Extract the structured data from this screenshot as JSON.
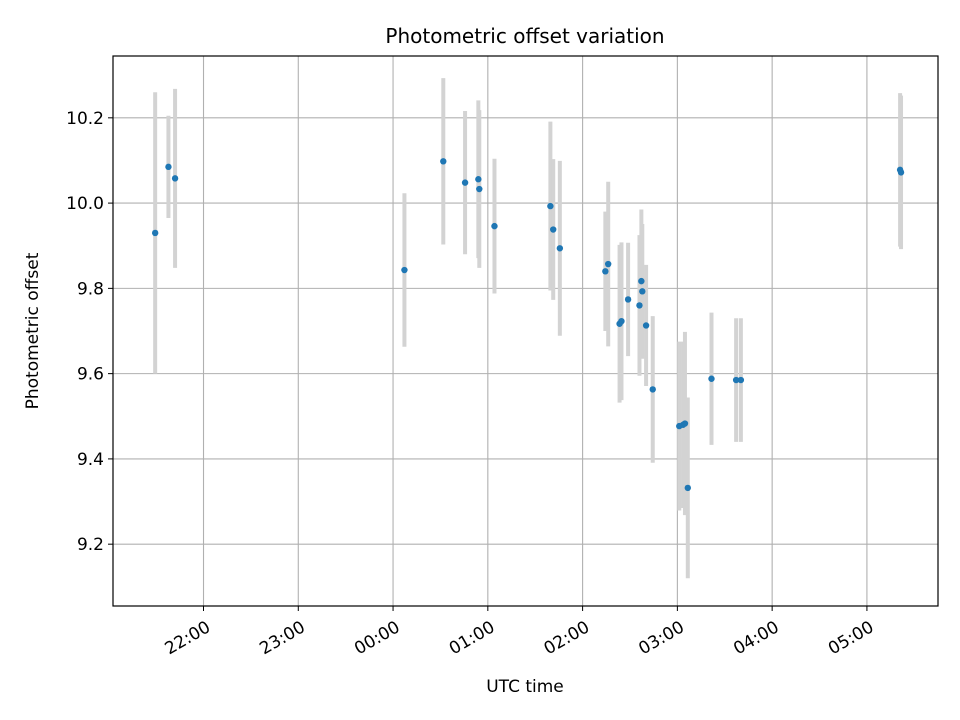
{
  "chart_data": {
    "type": "scatter",
    "title": "Photometric offset variation",
    "xlabel": "UTC time",
    "ylabel": "Photometric offset",
    "x_tick_labels": [
      "22:00",
      "23:00",
      "00:00",
      "01:00",
      "02:00",
      "03:00",
      "04:00",
      "05:00"
    ],
    "x_tick_hours": [
      22,
      23,
      24,
      25,
      26,
      27,
      28,
      29
    ],
    "xlim": [
      21.045,
      29.75
    ],
    "ylim": [
      9.055,
      10.345
    ],
    "y_ticks": [
      9.2,
      9.4,
      9.6,
      9.8,
      10.0,
      10.2
    ],
    "y_tick_labels": [
      "9.2",
      "9.4",
      "9.6",
      "9.8",
      "10.0",
      "10.2"
    ],
    "grid": true,
    "point_color": "#1f77b4",
    "errorbar_color": "#d3d3d3",
    "points": [
      {
        "x": 21.49,
        "y": 9.93,
        "err": 0.33
      },
      {
        "x": 21.63,
        "y": 10.085,
        "err": 0.12
      },
      {
        "x": 21.7,
        "y": 10.058,
        "err": 0.21
      },
      {
        "x": 24.12,
        "y": 9.843,
        "err": 0.18
      },
      {
        "x": 24.53,
        "y": 10.098,
        "err": 0.195
      },
      {
        "x": 24.76,
        "y": 10.048,
        "err": 0.168
      },
      {
        "x": 24.9,
        "y": 10.056,
        "err": 0.185
      },
      {
        "x": 24.91,
        "y": 10.033,
        "err": 0.185
      },
      {
        "x": 25.07,
        "y": 9.946,
        "err": 0.158
      },
      {
        "x": 25.66,
        "y": 9.993,
        "err": 0.198
      },
      {
        "x": 25.69,
        "y": 9.938,
        "err": 0.165
      },
      {
        "x": 25.76,
        "y": 9.894,
        "err": 0.205
      },
      {
        "x": 26.24,
        "y": 9.84,
        "err": 0.14
      },
      {
        "x": 26.27,
        "y": 9.857,
        "err": 0.193
      },
      {
        "x": 26.39,
        "y": 9.717,
        "err": 0.185
      },
      {
        "x": 26.41,
        "y": 9.723,
        "err": 0.185
      },
      {
        "x": 26.48,
        "y": 9.774,
        "err": 0.133
      },
      {
        "x": 26.6,
        "y": 9.76,
        "err": 0.165
      },
      {
        "x": 26.62,
        "y": 9.817,
        "err": 0.168
      },
      {
        "x": 26.63,
        "y": 9.793,
        "err": 0.158
      },
      {
        "x": 26.67,
        "y": 9.713,
        "err": 0.142
      },
      {
        "x": 26.74,
        "y": 9.563,
        "err": 0.172
      },
      {
        "x": 27.02,
        "y": 9.477,
        "err": 0.198
      },
      {
        "x": 27.06,
        "y": 9.48,
        "err": 0.195
      },
      {
        "x": 27.08,
        "y": 9.483,
        "err": 0.215
      },
      {
        "x": 27.11,
        "y": 9.332,
        "err": 0.212
      },
      {
        "x": 27.36,
        "y": 9.588,
        "err": 0.155
      },
      {
        "x": 27.62,
        "y": 9.585,
        "err": 0.145
      },
      {
        "x": 27.67,
        "y": 9.585,
        "err": 0.145
      },
      {
        "x": 29.35,
        "y": 10.078,
        "err": 0.18
      },
      {
        "x": 29.36,
        "y": 10.072,
        "err": 0.18
      }
    ]
  }
}
